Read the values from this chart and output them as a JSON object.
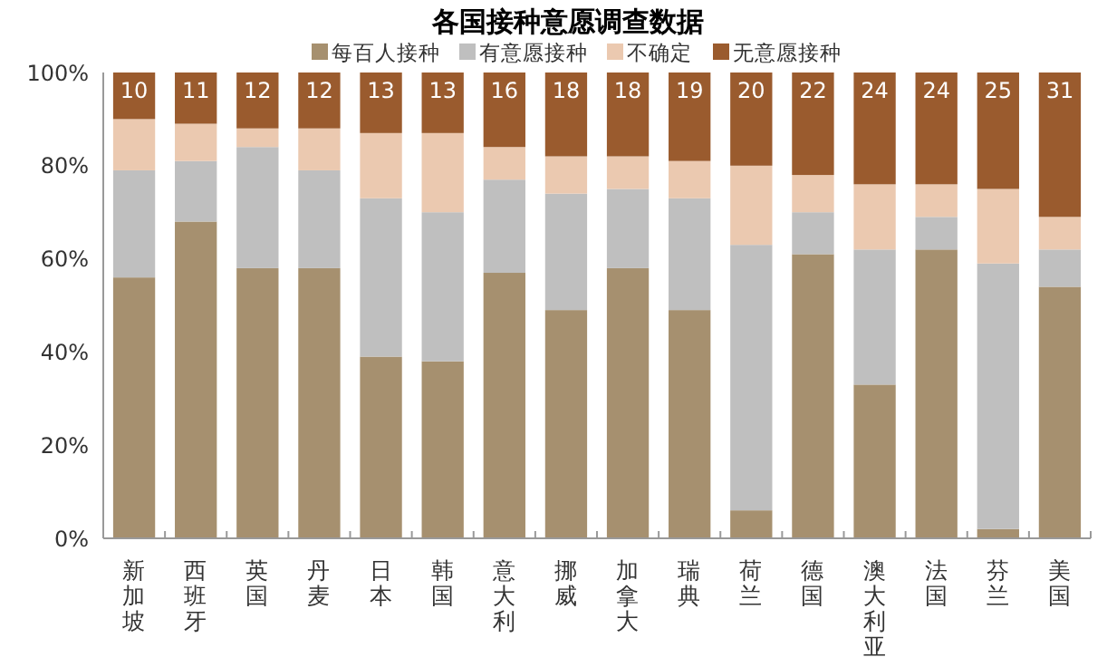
{
  "chart_data": {
    "type": "bar",
    "stacked": true,
    "title": "各国接种意愿调查数据",
    "legend": "top",
    "categories": [
      "新加坡",
      "西班牙",
      "英国",
      "丹麦",
      "日本",
      "韩国",
      "意大利",
      "挪威",
      "加拿大",
      "瑞典",
      "荷兰",
      "德国",
      "澳大利亚",
      "法国",
      "芬兰",
      "美国"
    ],
    "series": [
      {
        "name": "每百人接种",
        "color": "#a6906f",
        "values": [
          56,
          68,
          58,
          58,
          39,
          38,
          57,
          49,
          58,
          49,
          6,
          61,
          33,
          62,
          2,
          54
        ]
      },
      {
        "name": "有意愿接种",
        "color": "#bfbfbf",
        "values": [
          23,
          13,
          26,
          21,
          34,
          32,
          20,
          25,
          17,
          24,
          57,
          9,
          29,
          7,
          57,
          8
        ]
      },
      {
        "name": "不确定",
        "color": "#ebc9b0",
        "values": [
          11,
          8,
          4,
          9,
          14,
          17,
          7,
          8,
          7,
          8,
          17,
          8,
          14,
          7,
          16,
          7
        ]
      },
      {
        "name": "无意愿接种",
        "color": "#9a5b2e",
        "values": [
          10,
          11,
          12,
          12,
          13,
          13,
          16,
          18,
          18,
          19,
          20,
          22,
          24,
          24,
          25,
          31
        ],
        "value_labels": [
          "10",
          "11",
          "12",
          "12",
          "13",
          "13",
          "16",
          "18",
          "18",
          "19",
          "20",
          "22",
          "24",
          "24",
          "25",
          "31"
        ]
      }
    ],
    "ylim": [
      0,
      100
    ],
    "yticks": [
      {
        "value": 0,
        "label": "0%"
      },
      {
        "value": 20,
        "label": "20%"
      },
      {
        "value": 40,
        "label": "40%"
      },
      {
        "value": 60,
        "label": "60%"
      },
      {
        "value": 80,
        "label": "80%"
      },
      {
        "value": 100,
        "label": "100%"
      }
    ]
  }
}
